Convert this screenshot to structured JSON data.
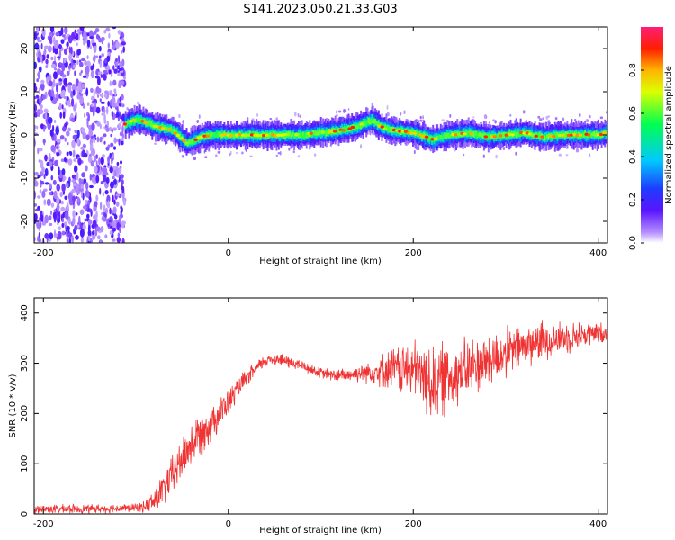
{
  "figure": {
    "title": "S141.2023.050.21.33.G03"
  },
  "chart_data": [
    {
      "type": "heatmap",
      "xlabel": "Height of straight line (km)",
      "ylabel": "Frequency (Hz)",
      "xlim": [
        -210,
        410
      ],
      "ylim": [
        -25,
        25
      ],
      "xticks": [
        -200,
        0,
        200,
        400
      ],
      "yticks": [
        -20,
        -10,
        0,
        10,
        20
      ],
      "grid": false,
      "noise_region_x": [
        -210,
        -112
      ],
      "signal_band": {
        "x": [
          -112,
          -100,
          -90,
          -80,
          -70,
          -60,
          -50,
          -45,
          -40,
          -30,
          -20,
          -10,
          0,
          20,
          40,
          60,
          80,
          100,
          120,
          140,
          150,
          155,
          160,
          170,
          180,
          200,
          220,
          240,
          260,
          280,
          300,
          320,
          340,
          360,
          380,
          400,
          410
        ],
        "center_hz": [
          2.5,
          3.5,
          3.0,
          2.0,
          1.5,
          1.0,
          -1.0,
          -2.0,
          -1.5,
          -0.5,
          0.0,
          0.0,
          0.0,
          0.0,
          0.0,
          0.0,
          0.0,
          0.5,
          1.0,
          2.0,
          3.0,
          3.5,
          2.5,
          1.5,
          1.0,
          0.5,
          -1.0,
          0.0,
          0.5,
          -0.5,
          0.0,
          0.5,
          -0.5,
          0.0,
          0.0,
          0.0,
          0.5
        ]
      },
      "colorbar": {
        "label": "Normalized spectral amplitude",
        "range": [
          0,
          1
        ],
        "ticks": [
          "0.0",
          "0.2",
          "0.4",
          "0.6",
          "0.8"
        ],
        "colormap": "rainbow (white-violet → blue → cyan → green → yellow → red → magenta)"
      }
    },
    {
      "type": "line",
      "xlabel": "Height of straight line (km)",
      "ylabel": "SNR (10 * v/v)",
      "xlim": [
        -210,
        410
      ],
      "ylim": [
        0,
        430
      ],
      "xticks": [
        -200,
        0,
        200,
        400
      ],
      "yticks": [
        0,
        100,
        200,
        300,
        400
      ],
      "grid": false,
      "color": "#f03232",
      "series": [
        {
          "x": [
            -210,
            -150,
            -100,
            -90,
            -80,
            -70,
            -60,
            -50,
            -40,
            -30,
            -20,
            -10,
            0,
            10,
            20,
            30,
            40,
            50,
            60,
            80,
            100,
            120,
            140,
            160,
            180,
            200,
            210,
            220,
            230,
            240,
            260,
            280,
            300,
            320,
            340,
            360,
            380,
            400,
            410
          ],
          "values": [
            10,
            10,
            12,
            15,
            25,
            50,
            80,
            110,
            140,
            160,
            180,
            200,
            220,
            250,
            270,
            290,
            305,
            310,
            305,
            295,
            280,
            275,
            280,
            285,
            290,
            285,
            275,
            260,
            265,
            275,
            290,
            305,
            320,
            335,
            345,
            350,
            355,
            360,
            360
          ],
          "noise_amplitude": [
            8,
            8,
            8,
            10,
            25,
            30,
            35,
            40,
            40,
            40,
            35,
            30,
            25,
            20,
            15,
            12,
            12,
            12,
            12,
            10,
            10,
            12,
            15,
            25,
            40,
            55,
            60,
            70,
            70,
            60,
            55,
            50,
            45,
            40,
            35,
            30,
            25,
            20,
            18
          ]
        }
      ]
    }
  ]
}
